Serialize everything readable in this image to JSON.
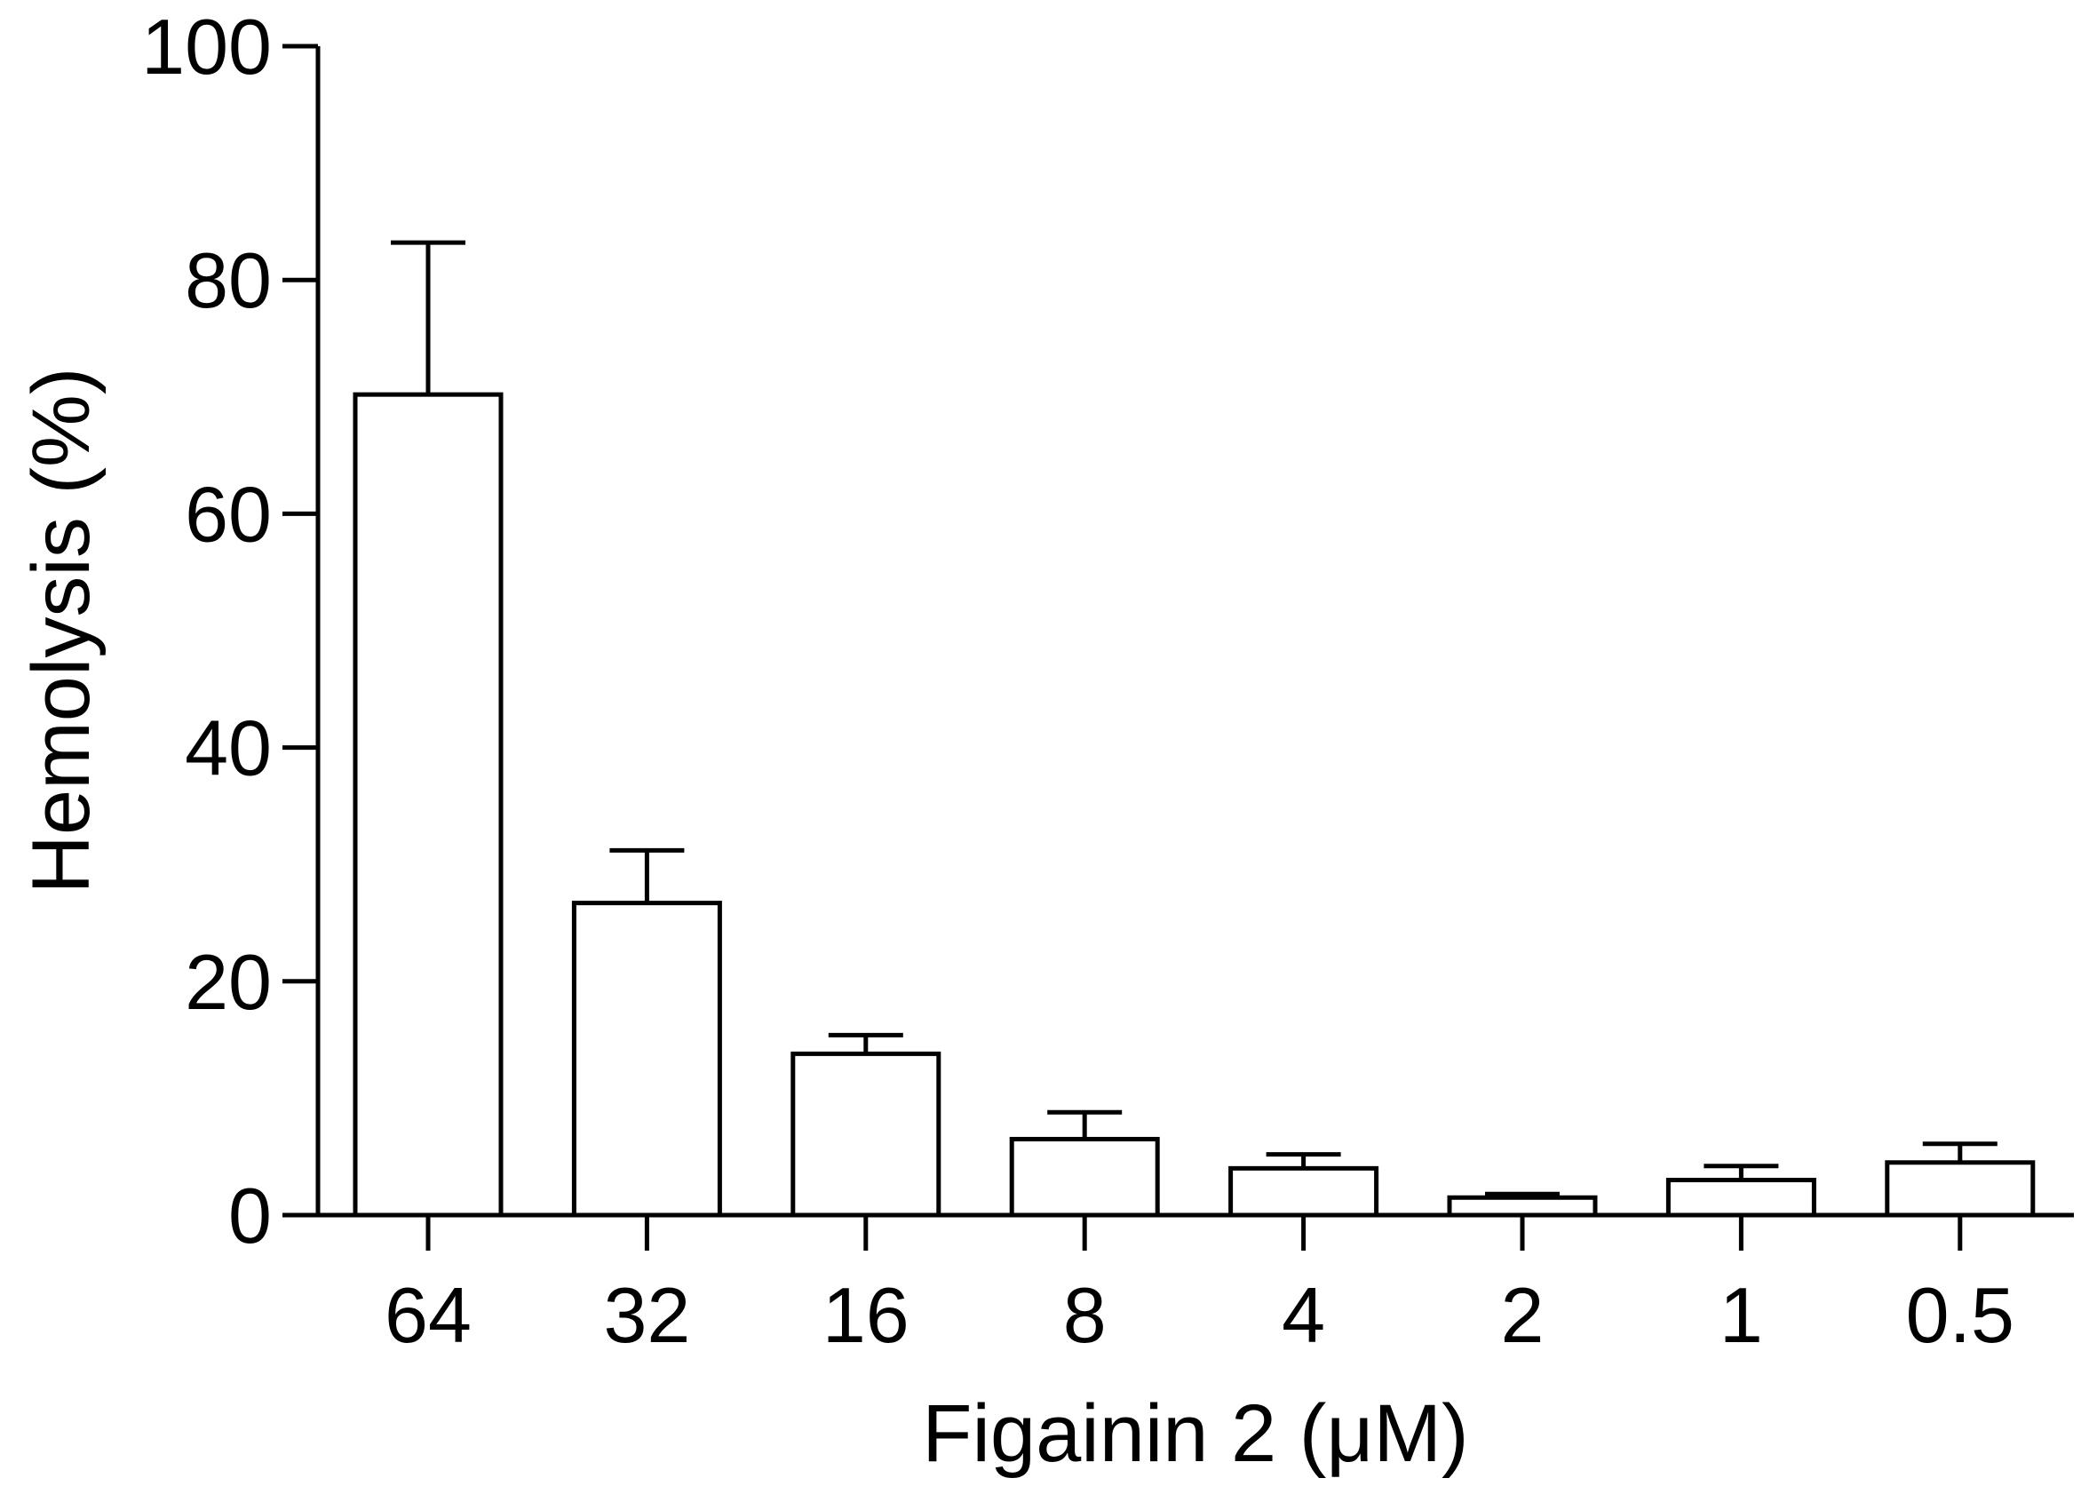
{
  "chart_data": {
    "type": "bar",
    "title": "",
    "xlabel": "Figainin 2 (μM)",
    "ylabel": "Hemolysis (%)",
    "categories": [
      "64",
      "32",
      "16",
      "8",
      "4",
      "2",
      "1",
      "0.5"
    ],
    "values": [
      70.2,
      26.7,
      13.8,
      6.5,
      4.0,
      1.5,
      3.0,
      4.5
    ],
    "error_bars": [
      13.0,
      4.5,
      1.6,
      2.3,
      1.2,
      0.3,
      1.2,
      1.6
    ],
    "ylim": [
      0,
      100
    ],
    "yticks": [
      "0",
      "20",
      "40",
      "60",
      "80",
      "100"
    ],
    "grid": false,
    "legend": false,
    "bar_fill": "#ffffff",
    "bar_stroke": "#000000"
  }
}
